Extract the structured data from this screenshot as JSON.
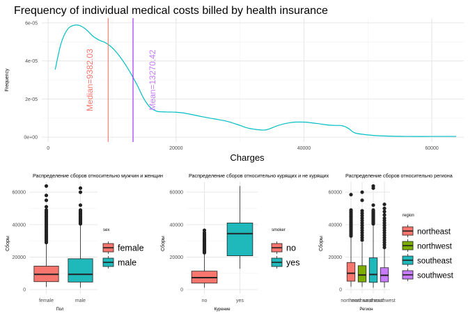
{
  "colors": {
    "teal": "#00BFC4",
    "red": "#F8766D",
    "purple": "#C77CFF",
    "olive": "#7CAE00",
    "boxteal": "#1FB8BB",
    "grid_major": "#E6E6E6",
    "grid_minor": "#F2F2F2",
    "text": "#4D4D4D",
    "median_line": "#F8766D",
    "mean_line": "#A020F0"
  },
  "chart_data": [
    {
      "type": "line",
      "title": "Frequency of individual medical costs billed by health insurance",
      "xlabel": "Charges",
      "ylabel": "Frequency",
      "xlim": [
        -1000,
        65000
      ],
      "ylim": [
        -2.5e-06,
        6.25e-05
      ],
      "x_ticks": [
        0,
        20000,
        40000,
        60000
      ],
      "x_tick_labels": [
        "0",
        "20000",
        "40000",
        "60000"
      ],
      "y_ticks": [
        0,
        2e-05,
        4e-05,
        6e-05
      ],
      "y_tick_labels": [
        "0e+00",
        "2e-05",
        "4e-05",
        "6e-05"
      ],
      "grid": true,
      "series": [
        {
          "x": [
            1100,
            2000,
            3000,
            4000,
            5000,
            6000,
            7000,
            8000,
            9000,
            10000,
            11000,
            12000,
            13000,
            14000,
            15000,
            16000,
            17000,
            18000,
            19000,
            20000,
            21000,
            22000,
            24000,
            26000,
            28000,
            30000,
            31000,
            32000,
            34000,
            36000,
            38000,
            40000,
            42000,
            44000,
            46000,
            47000,
            48000,
            50000,
            52000,
            56000,
            60000,
            63800
          ],
          "y": [
            3.55e-05,
            4.9e-05,
            5.65e-05,
            5.87e-05,
            5.85e-05,
            5.63e-05,
            5.3e-05,
            5.09e-05,
            4.95e-05,
            4.7e-05,
            4.32e-05,
            3.85e-05,
            3.3e-05,
            2.68e-05,
            2e-05,
            1.55e-05,
            1.36e-05,
            1.33e-05,
            1.32e-05,
            1.31e-05,
            1.28e-05,
            1.22e-05,
            1.08e-05,
            9.6e-06,
            8.3e-06,
            6.2e-06,
            5e-06,
            4.3e-06,
            3.8e-06,
            6.2e-06,
            7.7e-06,
            7.9e-06,
            7.2e-06,
            6.3e-06,
            6e-06,
            4.5e-06,
            2.2e-06,
            1.2e-06,
            7e-07,
            4e-07,
            4e-07,
            4e-07
          ]
        }
      ],
      "annotations": [
        {
          "label": "Median=9382.03",
          "value": 9382.03,
          "text_x": 6500,
          "text_y": 3e-05
        },
        {
          "label": "Mean=13270.42",
          "value": 13270.42,
          "text_x": 16300,
          "text_y": 3e-05
        }
      ]
    },
    {
      "type": "box",
      "title": "Распределение сборов относительно мужчин и женщин",
      "xlabel": "Пол",
      "ylabel": "Сборы",
      "ylim": [
        -2500,
        66500
      ],
      "y_ticks": [
        0,
        20000,
        40000,
        60000
      ],
      "y_tick_labels": [
        "0",
        "20000",
        "40000",
        "60000"
      ],
      "categories": [
        "female",
        "male"
      ],
      "legend_title": "sex",
      "legend": [
        "female",
        "male"
      ],
      "boxes": [
        {
          "min": 1608,
          "q1": 4885,
          "median": 9413,
          "q3": 14455,
          "max": 28950,
          "outliers": [
            29000,
            30000,
            31000,
            32000,
            33000,
            34000,
            35000,
            36000,
            37000,
            38000,
            39000,
            40000,
            41000,
            42000,
            43000,
            44000,
            45000,
            46000,
            47000,
            48000,
            49000,
            51000,
            55000,
            58000,
            63800
          ]
        },
        {
          "min": 1122,
          "q1": 4654,
          "median": 9370,
          "q3": 18989,
          "max": 40000,
          "outliers": [
            40500,
            41000,
            41500,
            42000,
            42500,
            43000,
            43500,
            44000,
            44500,
            45000,
            45500,
            46000,
            46500,
            47000,
            47500,
            48000,
            48500,
            49000,
            52000,
            60000,
            62500
          ]
        }
      ]
    },
    {
      "type": "box",
      "title": "Распределение сборов относительно курящих и не курящих",
      "xlabel": "Курение",
      "ylabel": "Сборы",
      "ylim": [
        -2500,
        66500
      ],
      "y_ticks": [
        0,
        20000,
        40000,
        60000
      ],
      "y_tick_labels": [
        "0",
        "20000",
        "40000",
        "60000"
      ],
      "categories": [
        "no",
        "yes"
      ],
      "legend_title": "smoker",
      "legend": [
        "no",
        "yes"
      ],
      "boxes": [
        {
          "min": 1122,
          "q1": 3986,
          "median": 7345,
          "q3": 11363,
          "max": 22400,
          "outliers": [
            22700,
            23000,
            23400,
            23800,
            24200,
            24700,
            25200,
            25700,
            26200,
            26700,
            27200,
            27700,
            28200,
            28800,
            29400,
            30000,
            30600,
            31200,
            32000,
            33000,
            34000,
            35000,
            36500
          ]
        },
        {
          "min": 12829,
          "q1": 20826,
          "median": 34456,
          "q3": 41019,
          "max": 63770,
          "outliers": []
        }
      ]
    },
    {
      "type": "box",
      "title": "Распределение сборов относительно региона",
      "xlabel": "Регион",
      "ylabel": "Сборы",
      "ylim": [
        -2500,
        66500
      ],
      "y_ticks": [
        0,
        20000,
        40000,
        60000
      ],
      "y_tick_labels": [
        "0",
        "20000",
        "40000",
        "60000"
      ],
      "categories": [
        "northeast",
        "northwest",
        "southeast",
        "southwest"
      ],
      "legend_title": "region",
      "legend": [
        "northeast",
        "northwest",
        "southeast",
        "southwest"
      ],
      "boxes": [
        {
          "min": 1695,
          "q1": 5194,
          "median": 10058,
          "q3": 16687,
          "max": 32000,
          "outliers": [
            33000,
            34000,
            35000,
            36000,
            37000,
            38000,
            39000,
            40000,
            41000,
            42000,
            43000,
            44000,
            45000,
            46000,
            47000,
            48000,
            49000,
            58500
          ]
        },
        {
          "min": 1621,
          "q1": 4720,
          "median": 8966,
          "q3": 14712,
          "max": 29000,
          "outliers": [
            30500,
            32000,
            33500,
            35000,
            36500,
            38000,
            39500,
            41000,
            42500,
            44000,
            45500,
            47000,
            48500,
            55000,
            60000
          ]
        },
        {
          "min": 1122,
          "q1": 4441,
          "median": 9294,
          "q3": 19526,
          "max": 40000,
          "outliers": [
            40500,
            41000,
            41500,
            42000,
            42500,
            43000,
            43500,
            44000,
            44500,
            45000,
            45500,
            46000,
            46500,
            47000,
            47500,
            48000,
            48500,
            49000,
            52000,
            62500,
            63800
          ]
        },
        {
          "min": 1241,
          "q1": 4751,
          "median": 8799,
          "q3": 13463,
          "max": 25000,
          "outliers": [
            26000,
            27500,
            29000,
            30500,
            32000,
            33500,
            35000,
            36500,
            38000,
            39500,
            41000,
            42500,
            44000,
            46000,
            48000,
            50000,
            52500
          ]
        }
      ]
    }
  ]
}
